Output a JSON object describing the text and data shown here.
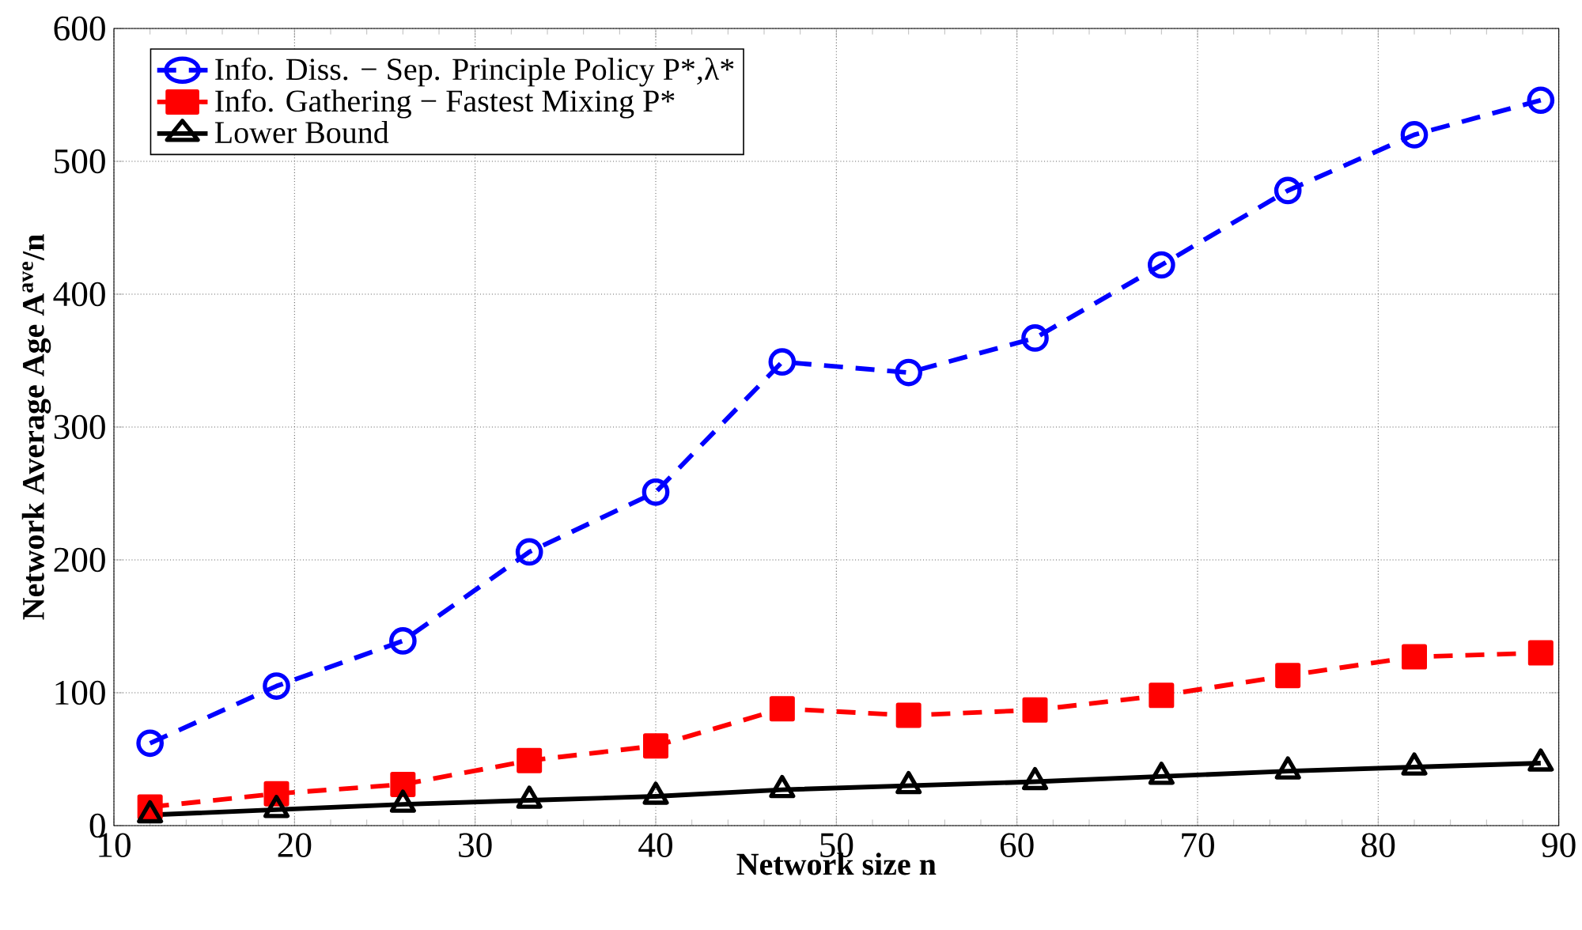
{
  "chart_data": {
    "type": "line",
    "xlabel": "Network size n",
    "ylabel": "Network Average Age A$^{ave}$/n",
    "x": [
      12,
      19,
      26,
      33,
      40,
      47,
      54,
      61,
      68,
      75,
      82,
      89
    ],
    "series": [
      {
        "name": "Info. Diss. − Sep. Principle Policy P*,λ*",
        "color": "#0000ff",
        "marker": "circle",
        "line_style": "dashed",
        "values": [
          62,
          105,
          139,
          206,
          251,
          349,
          341,
          367,
          422,
          478,
          520,
          546
        ]
      },
      {
        "name": "Info. Gathering − Fastest Mixing P*",
        "color": "#ff0000",
        "marker": "square",
        "line_style": "dashed",
        "values": [
          14,
          24,
          31,
          49,
          60,
          88,
          83,
          87,
          98,
          113,
          127,
          130
        ]
      },
      {
        "name": "Lower Bound",
        "color": "#000000",
        "marker": "triangle",
        "line_style": "solid",
        "values": [
          8,
          12,
          16,
          19,
          22,
          27,
          30,
          33,
          37,
          41,
          44,
          47
        ]
      }
    ],
    "xlim": [
      10,
      90
    ],
    "ylim": [
      0,
      600
    ],
    "xticks": [
      10,
      20,
      30,
      40,
      50,
      60,
      70,
      80,
      90
    ],
    "yticks": [
      0,
      100,
      200,
      300,
      400,
      500,
      600
    ],
    "grid": true,
    "legend": "top left"
  }
}
